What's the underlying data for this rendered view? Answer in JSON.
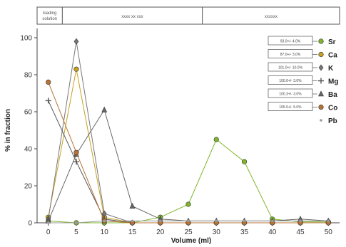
{
  "chart_data": {
    "type": "line",
    "xlabel": "Volume (ml)",
    "ylabel": "% in fraction",
    "xlim": [
      -2,
      52
    ],
    "ylim": [
      0,
      105
    ],
    "x_ticks": [
      0,
      5,
      10,
      15,
      20,
      25,
      30,
      35,
      40,
      45,
      50
    ],
    "y_ticks": [
      0,
      20,
      40,
      60,
      80,
      100
    ],
    "grid": false,
    "legend_position": "right",
    "phases": [
      {
        "label": "loading solution",
        "x_start": -2,
        "x_end": 2.5
      },
      {
        "label": "xxxx xx xxx",
        "x_start": 2.5,
        "x_end": 27.5
      },
      {
        "label": "xxxxxx",
        "x_start": 27.5,
        "x_end": 52
      }
    ],
    "series": [
      {
        "name": "Sr",
        "recovery": "93.0+/- 4.0%",
        "color": "#7fb62a",
        "marker": "circle",
        "x": [
          0,
          5,
          10,
          15,
          20,
          25,
          30,
          35,
          40,
          45,
          50
        ],
        "y": [
          1,
          0,
          0,
          0,
          3,
          10,
          45,
          33,
          2,
          0.5,
          0.5
        ]
      },
      {
        "name": "Ca",
        "recovery": "87.0+/- 3.0%",
        "color": "#c8a020",
        "marker": "circle",
        "x": [
          0,
          5,
          10,
          15,
          20,
          25,
          30,
          35,
          40,
          45,
          50
        ],
        "y": [
          3,
          83,
          3,
          0,
          0,
          0,
          0,
          0,
          0,
          0,
          0
        ]
      },
      {
        "name": "K",
        "recovery": "101.0+/- 10.0%",
        "color": "#777777",
        "marker": "diamond",
        "x": [
          0,
          5,
          10,
          15,
          20,
          25,
          30,
          35,
          40,
          45,
          50
        ],
        "y": [
          2,
          98,
          5,
          0,
          0,
          0,
          0,
          0,
          0,
          0,
          0
        ]
      },
      {
        "name": "Mg",
        "recovery": "100.0+/- 3.0%",
        "color": "#555555",
        "marker": "plus",
        "x": [
          0,
          5,
          10,
          15,
          20,
          25,
          30,
          35,
          40,
          45,
          50
        ],
        "y": [
          66,
          33,
          2,
          0,
          0,
          0,
          0,
          0,
          0,
          0,
          0
        ]
      },
      {
        "name": "Ba",
        "recovery": "100.3+/- 3.0%",
        "color": "#666666",
        "marker": "triangle",
        "x": [
          0,
          5,
          10,
          15,
          20,
          25,
          30,
          35,
          40,
          45,
          50
        ],
        "y": [
          1,
          37,
          61,
          9,
          2,
          1,
          1,
          1,
          1,
          2,
          1
        ]
      },
      {
        "name": "Co",
        "recovery": "105.0+/- 5.0%",
        "color": "#b87333",
        "marker": "circle",
        "x": [
          0,
          5,
          10,
          15,
          20,
          25,
          30,
          35,
          40,
          45,
          50
        ],
        "y": [
          76,
          38,
          1,
          0,
          0,
          0,
          0,
          0,
          0,
          0,
          0
        ]
      },
      {
        "name": "Pb",
        "recovery": "",
        "color": "#9a9a9a",
        "marker": "dot",
        "x": [
          0,
          5,
          10,
          15,
          20,
          25,
          30,
          35,
          40,
          45,
          50
        ],
        "y": [
          0,
          0,
          1,
          1,
          1,
          1,
          1,
          1,
          1,
          1,
          1
        ]
      }
    ]
  }
}
